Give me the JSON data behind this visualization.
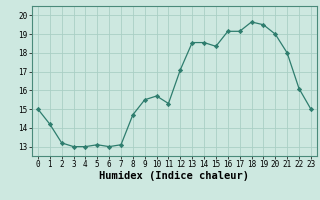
{
  "x": [
    0,
    1,
    2,
    3,
    4,
    5,
    6,
    7,
    8,
    9,
    10,
    11,
    12,
    13,
    14,
    15,
    16,
    17,
    18,
    19,
    20,
    21,
    22,
    23
  ],
  "y": [
    15.0,
    14.2,
    13.2,
    13.0,
    13.0,
    13.1,
    13.0,
    13.1,
    14.7,
    15.5,
    15.7,
    15.3,
    17.1,
    18.55,
    18.55,
    18.35,
    19.15,
    19.15,
    19.65,
    19.5,
    19.0,
    18.0,
    16.1,
    15.0
  ],
  "line_color": "#2e7d6e",
  "marker": "D",
  "marker_size": 2.2,
  "bg_color": "#cde8e0",
  "grid_color": "#aacfc5",
  "xlabel": "Humidex (Indice chaleur)",
  "xlim": [
    -0.5,
    23.5
  ],
  "ylim": [
    12.5,
    20.5
  ],
  "yticks": [
    13,
    14,
    15,
    16,
    17,
    18,
    19,
    20
  ],
  "xticks": [
    0,
    1,
    2,
    3,
    4,
    5,
    6,
    7,
    8,
    9,
    10,
    11,
    12,
    13,
    14,
    15,
    16,
    17,
    18,
    19,
    20,
    21,
    22,
    23
  ],
  "tick_label_fontsize": 5.5,
  "xlabel_fontsize": 7.5,
  "linewidth": 0.9
}
